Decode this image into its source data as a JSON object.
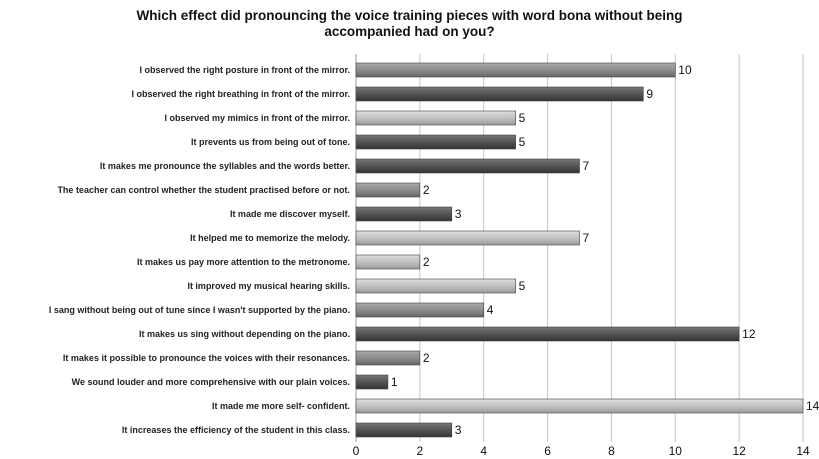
{
  "chart_data": {
    "type": "bar",
    "orientation": "horizontal",
    "title_lines": [
      "Which effect did pronouncing the voice training pieces with word bona without being",
      "accompanied had on you?"
    ],
    "categories": [
      "I observed the right posture in front of the mirror.",
      "I observed the right breathing in front of the mirror.",
      "I observed my mimics in front of the mirror.",
      "It prevents us from being out of tone.",
      "It makes me pronounce the syllables and the words better.",
      "The teacher can control whether the student practised before or not.",
      "It made me discover myself.",
      "It helped me to memorize the melody.",
      "It makes us pay more attention to the metronome.",
      "It improved my musical hearing skills.",
      "I sang without being out of tune since I wasn't supported by the piano.",
      "It makes us sing without depending on the piano.",
      "It makes it possible to pronounce the voices with their resonances.",
      "We sound louder and more comprehensive with our plain voices.",
      "It made me more self- confident.",
      "It increases the efficiency of the student in this class."
    ],
    "values": [
      10,
      9,
      5,
      5,
      7,
      2,
      3,
      7,
      2,
      5,
      4,
      12,
      2,
      1,
      14,
      3
    ],
    "bar_shades": [
      "mid",
      "dark",
      "light",
      "dark",
      "dark",
      "mid",
      "dark",
      "light",
      "light",
      "light",
      "mid",
      "dark",
      "mid",
      "dark",
      "light",
      "dark"
    ],
    "xlim": [
      0,
      14
    ],
    "xticks": [
      "0",
      "2",
      "4",
      "6",
      "8",
      "10",
      "12",
      "14"
    ],
    "grid": true,
    "colors": {
      "light": "#c2c2c2",
      "mid": "#8e8e8e",
      "dark": "#555555",
      "grid": "#c4c4c4"
    }
  }
}
